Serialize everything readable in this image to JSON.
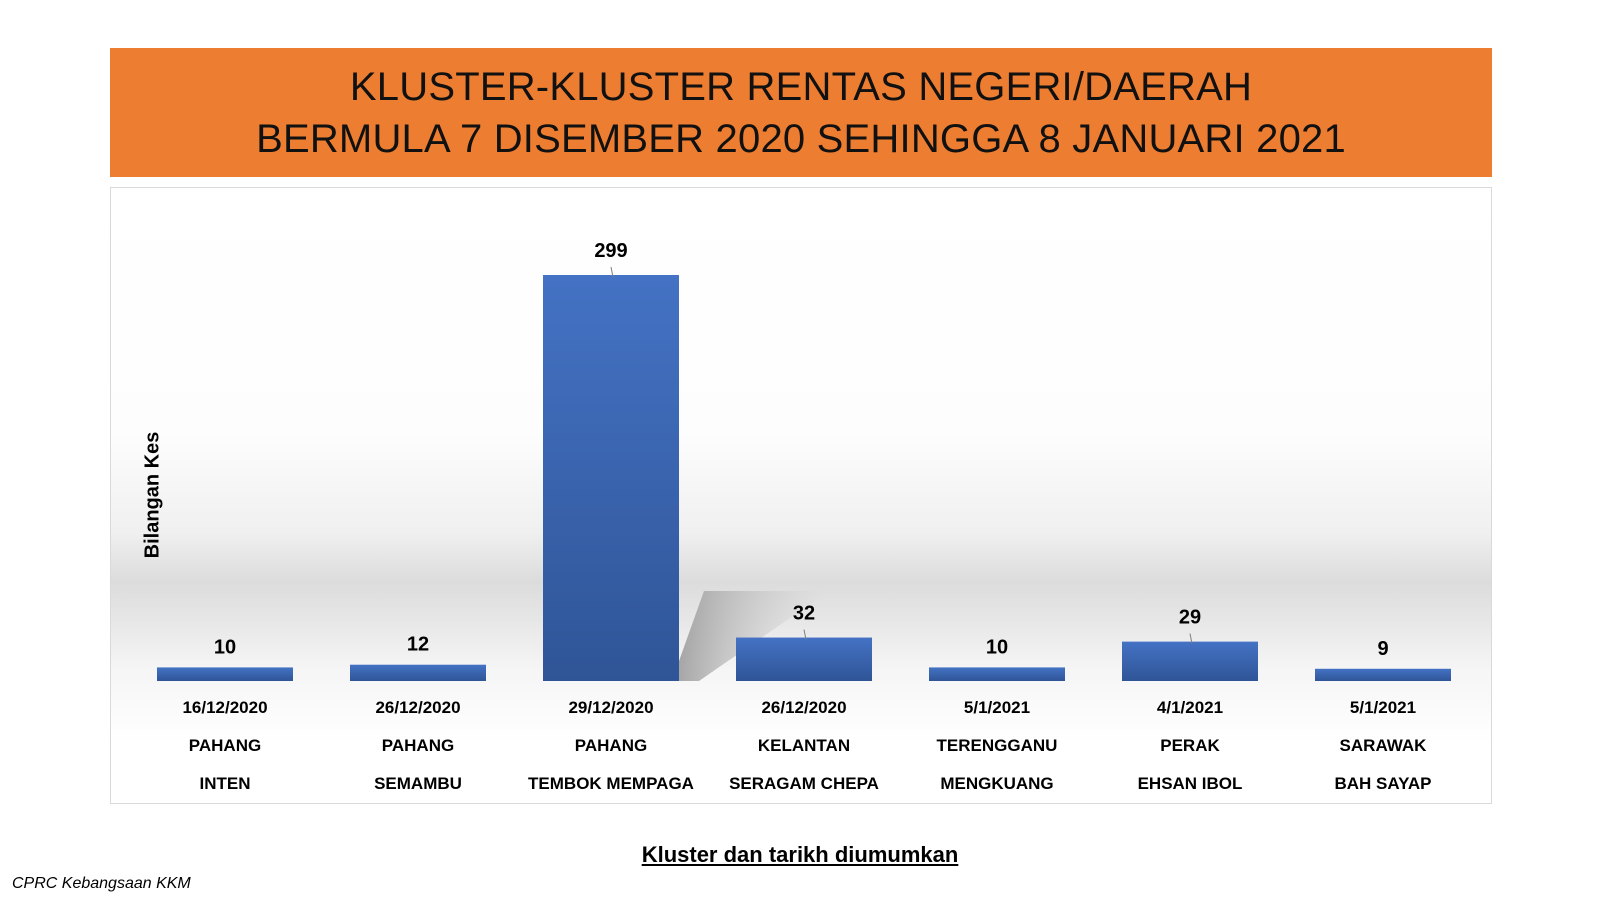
{
  "chart_data": {
    "type": "bar",
    "title": "KLUSTER-KLUSTER RENTAS NEGERI/DAERAH",
    "subtitle": "BERMULA 7 DISEMBER 2020 SEHINGGA 8 JANUARI 2021",
    "xlabel": "Kluster dan tarikh diumumkan",
    "ylabel": "Bilangan Kes",
    "categories": [
      {
        "date": "16/12/2020",
        "state": "PAHANG",
        "cluster": "INTEN"
      },
      {
        "date": "26/12/2020",
        "state": "PAHANG",
        "cluster": "SEMAMBU"
      },
      {
        "date": "29/12/2020",
        "state": "PAHANG",
        "cluster": "TEMBOK MEMPAGA"
      },
      {
        "date": "26/12/2020",
        "state": "KELANTAN",
        "cluster": "SERAGAM CHEPA"
      },
      {
        "date": "5/1/2021",
        "state": "TERENGGANU",
        "cluster": "MENGKUANG"
      },
      {
        "date": "4/1/2021",
        "state": "PERAK",
        "cluster": "EHSAN IBOL"
      },
      {
        "date": "5/1/2021",
        "state": "SARAWAK",
        "cluster": "BAH SAYAP"
      }
    ],
    "values": [
      10,
      12,
      299,
      32,
      10,
      29,
      9
    ],
    "ylim": [
      0,
      299
    ],
    "grid": false,
    "legend": "none",
    "bar_color": "#4472C4",
    "bar_color_dark": "#2F5597"
  },
  "footer": {
    "credit": "CPRC Kebangsaan KKM"
  },
  "colors": {
    "banner": "#ED7D31"
  }
}
